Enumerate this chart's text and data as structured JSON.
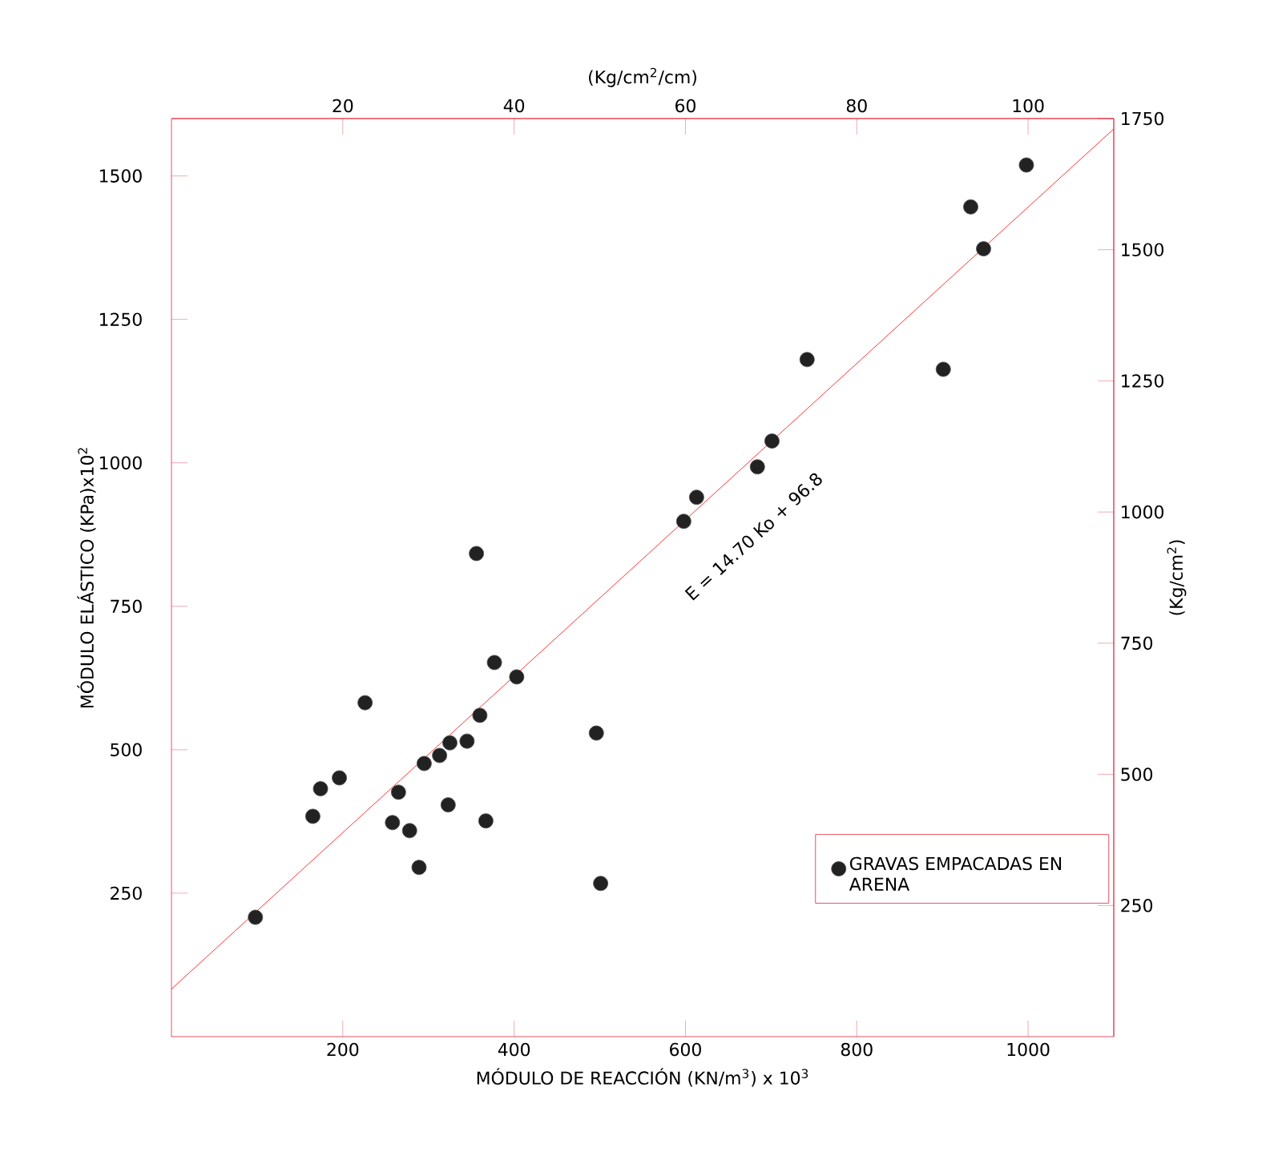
{
  "chart_data": {
    "type": "scatter",
    "xlabel": "MÓDULO DE REACCIÓN (KN/m$^{3}$) x 10$^{3}$",
    "ylabel": "MÓDULO ELÁSTICO  (KPa)x10$^{2}$",
    "x2label": "(Kg/cm$^{2}$/cm)",
    "y2label": "(Kg/cm$^{2}$)",
    "annotations": [
      "E = 14.70 Ko + 96.8"
    ],
    "xlim": [
      0,
      1100
    ],
    "ylim": [
      0,
      1600
    ],
    "xticks": [
      200,
      400,
      600,
      800,
      1000
    ],
    "yticks": [
      250,
      500,
      750,
      1000,
      1250,
      1500
    ],
    "x2lim": [
      0,
      110
    ],
    "x2ticks": [
      20,
      40,
      60,
      80,
      100
    ],
    "y2lim": [
      0,
      1750
    ],
    "y2ticks": [
      250,
      500,
      750,
      1000,
      1250,
      1500,
      1750
    ],
    "legend": "bottom right",
    "marker": "circle",
    "series": [
      {
        "name": "GRAVAS EMPACADAS EN ARENA",
        "color": "#222222",
        "x": [
          98,
          165,
          174,
          196,
          226,
          258,
          265,
          278,
          289,
          295,
          313,
          325,
          323,
          345,
          360,
          367,
          356,
          377,
          403,
          496,
          501,
          598,
          613,
          684,
          701,
          742,
          901,
          933,
          948,
          998
        ],
        "values": [
          208,
          384,
          432,
          451,
          582,
          373,
          426,
          359,
          295,
          476,
          490,
          512,
          404,
          515,
          560,
          376,
          842,
          652,
          627,
          529,
          267,
          898,
          940,
          993,
          1038,
          1180,
          1163,
          1446,
          1373,
          1519
        ]
      },
      {
        "type": "line",
        "color": "#ff0000",
        "line_style": "solid",
        "marker": "none",
        "x": [
          0,
          1100
        ],
        "values": [
          83,
          1582
        ]
      }
    ]
  }
}
